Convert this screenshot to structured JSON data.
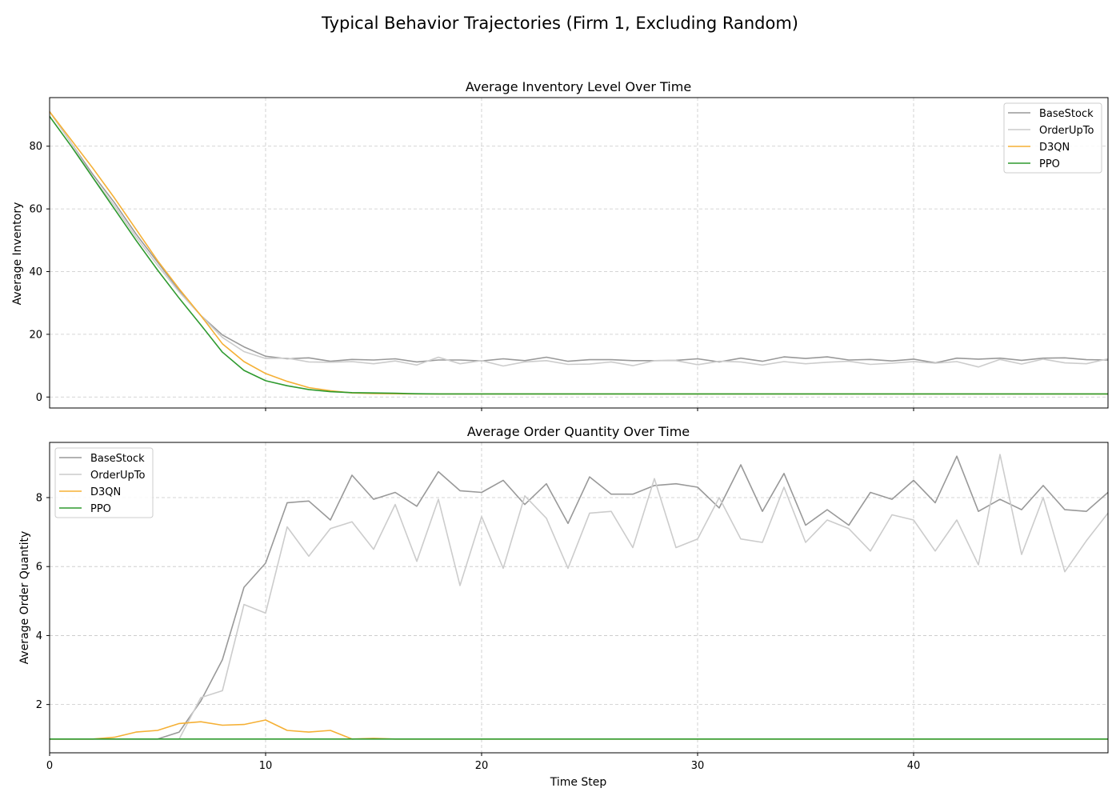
{
  "figure": {
    "title": "Typical Behavior Trajectories (Firm 1, Excluding Random)"
  },
  "colors": {
    "BaseStock": "#999999",
    "OrderUpTo": "#cccccc",
    "D3QN": "#f5b035",
    "PPO": "#2e9a2e",
    "grid": "#c8c8c8"
  },
  "chart_data": [
    {
      "type": "line",
      "title": "Average Inventory Level Over Time",
      "xlabel": "",
      "ylabel": "Average Inventory",
      "xlim": [
        0,
        49
      ],
      "ylim": [
        -3.5,
        95.5
      ],
      "xticks": [
        10,
        20,
        30,
        40
      ],
      "yticks": [
        0,
        20,
        40,
        60,
        80
      ],
      "xtick_labels_visible": false,
      "grid": true,
      "legend": "top-right",
      "x": [
        0,
        1,
        2,
        3,
        4,
        5,
        6,
        7,
        8,
        9,
        10,
        11,
        12,
        13,
        14,
        15,
        16,
        17,
        18,
        19,
        20,
        21,
        22,
        23,
        24,
        25,
        26,
        27,
        28,
        29,
        30,
        31,
        32,
        33,
        34,
        35,
        36,
        37,
        38,
        39,
        40,
        41,
        42,
        43,
        44,
        45,
        46,
        47,
        48,
        49
      ],
      "series": [
        {
          "name": "BaseStock",
          "values": [
            91,
            81,
            71,
            62,
            52,
            43,
            34,
            26,
            19.8,
            16,
            13,
            12.2,
            12.5,
            11.4,
            12,
            11.8,
            12.2,
            11.2,
            11.8,
            11.8,
            11.5,
            12.2,
            11.6,
            12.7,
            11.4,
            11.9,
            11.9,
            11.6,
            11.6,
            11.7,
            12.2,
            11.2,
            12.4,
            11.4,
            12.8,
            12.3,
            12.8,
            11.8,
            12,
            11.5,
            12.1,
            10.9,
            12.4,
            12.1,
            12.4,
            11.7,
            12.4,
            12.5,
            11.9,
            11.8
          ]
        },
        {
          "name": "OrderUpTo",
          "values": [
            91,
            81,
            70,
            61,
            51,
            42,
            33.5,
            26,
            19,
            14.5,
            12.3,
            12.4,
            11.2,
            11.1,
            11.3,
            10.6,
            11.5,
            10.2,
            12.7,
            10.6,
            11.6,
            9.9,
            11.2,
            11.6,
            10.4,
            10.5,
            11.2,
            10,
            11.6,
            11.6,
            10.3,
            11.4,
            11.2,
            10.2,
            11.3,
            10.6,
            11.1,
            11.4,
            10.4,
            10.8,
            11.3,
            10.8,
            11.3,
            9.6,
            12,
            10.5,
            12.1,
            10.9,
            10.6,
            12.2
          ]
        },
        {
          "name": "D3QN",
          "values": [
            91,
            82,
            73,
            63.5,
            53.5,
            43.5,
            34.5,
            26,
            17,
            11.3,
            7.5,
            5,
            3,
            2,
            1.3,
            1.1,
            1.05,
            1,
            1,
            1,
            1,
            1,
            1,
            1,
            1,
            1,
            1,
            1,
            1,
            1,
            1,
            1,
            1,
            1,
            1,
            1,
            1,
            1,
            1,
            1,
            1,
            1,
            1,
            1,
            1,
            1,
            1,
            1,
            1,
            1
          ]
        },
        {
          "name": "PPO",
          "values": [
            89.5,
            80,
            70,
            60,
            50,
            40.5,
            31.5,
            23,
            14.3,
            8.5,
            5.2,
            3.6,
            2.4,
            1.7,
            1.4,
            1.3,
            1.2,
            1.05,
            1,
            1,
            1,
            1,
            1,
            1,
            1,
            1,
            1,
            1,
            1,
            1,
            1,
            1,
            1,
            1,
            1,
            1,
            1,
            1,
            1,
            1,
            1,
            1,
            1,
            1,
            1,
            1,
            1,
            1,
            1,
            1
          ]
        }
      ]
    },
    {
      "type": "line",
      "title": "Average Order Quantity Over Time",
      "xlabel": "Time Step",
      "ylabel": "Average Order Quantity",
      "xlim": [
        0,
        49
      ],
      "ylim": [
        0.6,
        9.6
      ],
      "xticks": [
        0,
        10,
        20,
        30,
        40
      ],
      "yticks": [
        2,
        4,
        6,
        8
      ],
      "grid": true,
      "legend": "top-left",
      "x": [
        0,
        1,
        2,
        3,
        4,
        5,
        6,
        7,
        8,
        9,
        10,
        11,
        12,
        13,
        14,
        15,
        16,
        17,
        18,
        19,
        20,
        21,
        22,
        23,
        24,
        25,
        26,
        27,
        28,
        29,
        30,
        31,
        32,
        33,
        34,
        35,
        36,
        37,
        38,
        39,
        40,
        41,
        42,
        43,
        44,
        45,
        46,
        47,
        48,
        49
      ],
      "series": [
        {
          "name": "BaseStock",
          "values": [
            1,
            1,
            1,
            1,
            1,
            1,
            1.2,
            2.1,
            3.3,
            5.4,
            6.1,
            7.85,
            7.9,
            7.35,
            8.65,
            7.95,
            8.15,
            7.75,
            8.75,
            8.2,
            8.15,
            8.5,
            7.8,
            8.4,
            7.25,
            8.6,
            8.1,
            8.1,
            8.35,
            8.4,
            8.3,
            7.7,
            8.95,
            7.6,
            8.7,
            7.2,
            7.65,
            7.2,
            8.15,
            7.95,
            8.5,
            7.85,
            9.2,
            7.6,
            7.95,
            7.65,
            8.35,
            7.65,
            7.6,
            8.15
          ]
        },
        {
          "name": "OrderUpTo",
          "values": [
            1,
            1,
            1,
            1,
            1,
            1,
            1,
            2.2,
            2.4,
            4.9,
            4.65,
            7.15,
            6.3,
            7.1,
            7.3,
            6.5,
            7.8,
            6.15,
            7.95,
            5.45,
            7.45,
            5.95,
            8.05,
            7.4,
            5.95,
            7.55,
            7.6,
            6.55,
            8.55,
            6.55,
            6.8,
            8,
            6.8,
            6.7,
            8.3,
            6.7,
            7.35,
            7.1,
            6.45,
            7.5,
            7.35,
            6.45,
            7.35,
            6.05,
            9.25,
            6.35,
            8,
            5.85,
            6.75,
            7.55
          ]
        },
        {
          "name": "D3QN",
          "values": [
            1,
            1,
            1,
            1.05,
            1.2,
            1.25,
            1.45,
            1.5,
            1.4,
            1.42,
            1.55,
            1.25,
            1.2,
            1.25,
            1,
            1.02,
            1,
            1,
            1,
            1,
            1,
            1,
            1,
            1,
            1,
            1,
            1,
            1,
            1,
            1,
            1,
            1,
            1,
            1,
            1,
            1,
            1,
            1,
            1,
            1,
            1,
            1,
            1,
            1,
            1,
            1,
            1,
            1,
            1,
            1
          ]
        },
        {
          "name": "PPO",
          "values": [
            1,
            1,
            1,
            1,
            1,
            1,
            1,
            1,
            1,
            1,
            1,
            1,
            1,
            1,
            1,
            1,
            1,
            1,
            1,
            1,
            1,
            1,
            1,
            1,
            1,
            1,
            1,
            1,
            1,
            1,
            1,
            1,
            1,
            1,
            1,
            1,
            1,
            1,
            1,
            1,
            1,
            1,
            1,
            1,
            1,
            1,
            1,
            1,
            1,
            1
          ]
        }
      ]
    }
  ]
}
